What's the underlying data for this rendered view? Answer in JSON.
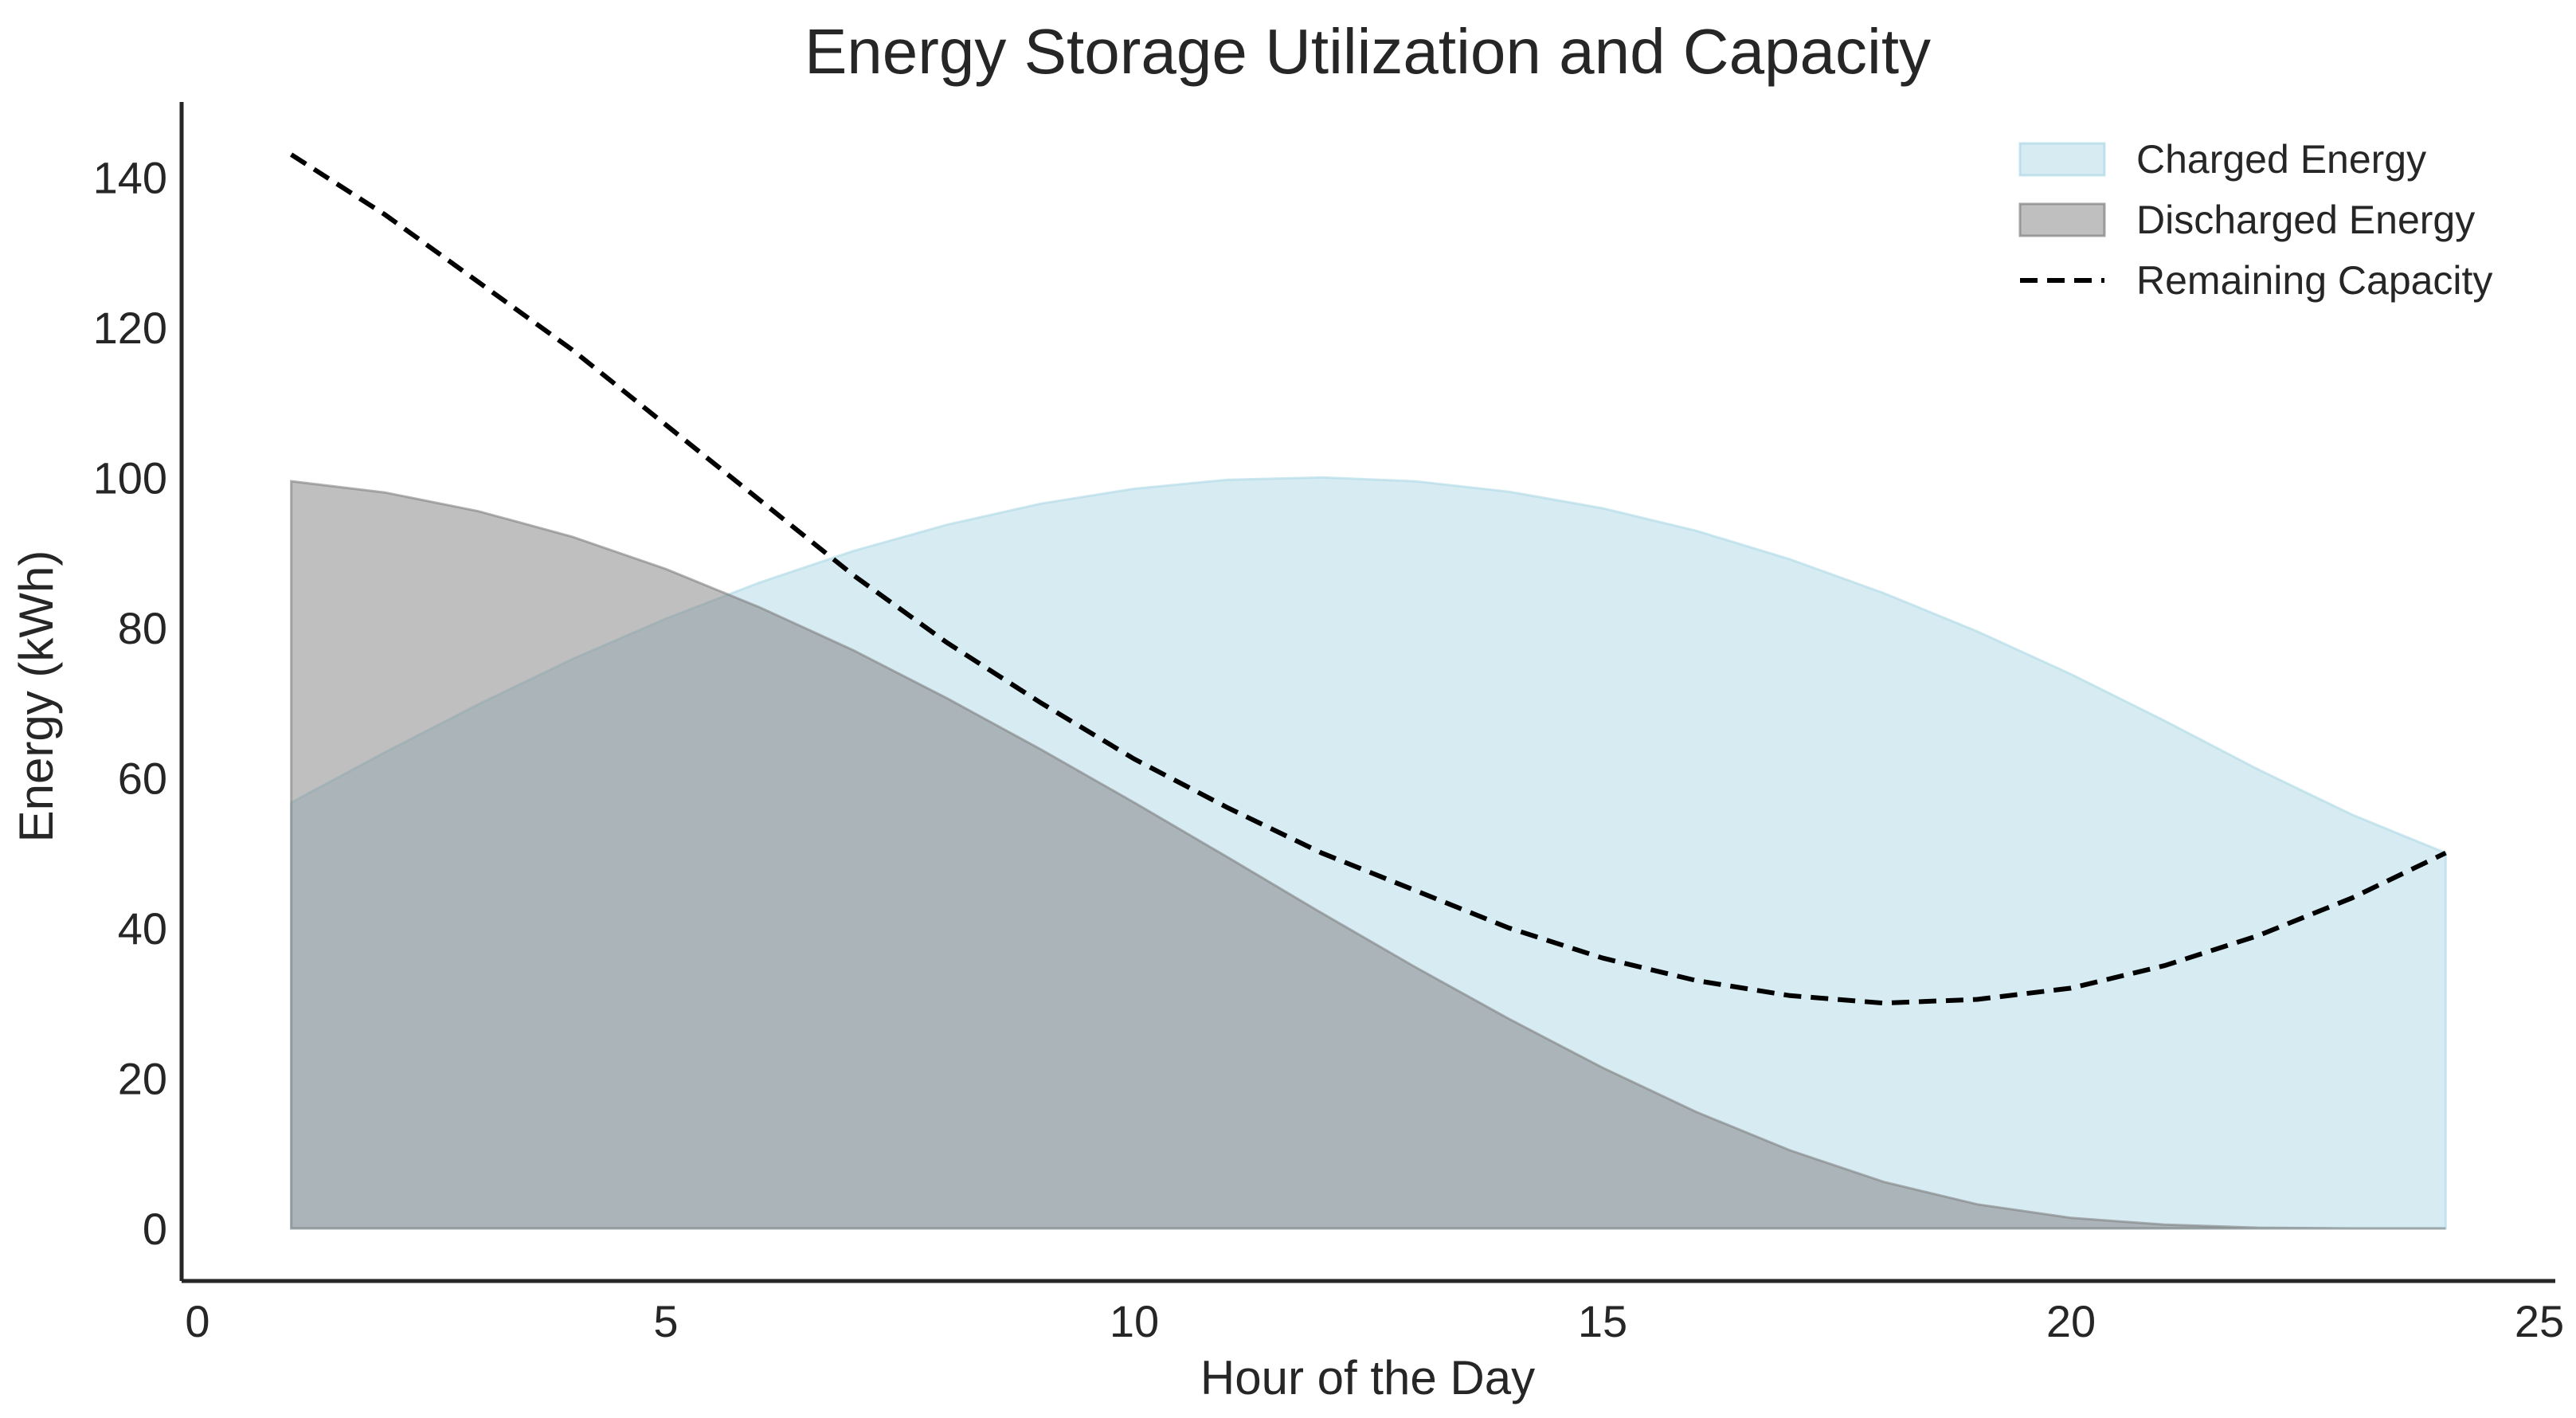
{
  "chart_data": {
    "type": "area",
    "title": "Energy Storage Utilization and Capacity",
    "xlabel": "Hour of the Day",
    "ylabel": "Energy (kWh)",
    "xlim": [
      0,
      25
    ],
    "ylim": [
      -7,
      150
    ],
    "xticks": [
      0,
      5,
      10,
      15,
      20,
      25
    ],
    "yticks": [
      0,
      20,
      40,
      60,
      80,
      100,
      120,
      140
    ],
    "grid": false,
    "legend_position": "top-right",
    "x": [
      1,
      2,
      3,
      4,
      5,
      6,
      7,
      8,
      9,
      10,
      11,
      12,
      13,
      14,
      15,
      16,
      17,
      18,
      19,
      20,
      21,
      22,
      23,
      24
    ],
    "series": [
      {
        "name": "Charged Energy",
        "kind": "area",
        "color": "#add8e6",
        "values": [
          56.7,
          63.4,
          69.8,
          75.8,
          81.2,
          86.0,
          90.2,
          93.7,
          96.5,
          98.5,
          99.7,
          100.0,
          99.5,
          98.1,
          95.9,
          92.9,
          89.1,
          84.6,
          79.5,
          73.8,
          67.6,
          61.1,
          55.1,
          50.0
        ]
      },
      {
        "name": "Discharged Energy",
        "kind": "area",
        "color": "#808080",
        "values": [
          99.5,
          98.0,
          95.5,
          92.1,
          87.8,
          82.7,
          77.0,
          70.6,
          63.8,
          56.7,
          49.4,
          42.0,
          34.8,
          27.9,
          21.4,
          15.5,
          10.4,
          6.2,
          3.2,
          1.4,
          0.5,
          0.1,
          0.0,
          0.0
        ]
      },
      {
        "name": "Remaining Capacity",
        "kind": "line",
        "style": "dashed",
        "color": "#000000",
        "values": [
          143.0,
          135.0,
          126.0,
          117.0,
          107.0,
          97.0,
          87.0,
          78.0,
          70.0,
          62.5,
          56.0,
          50.0,
          45.0,
          40.0,
          36.0,
          33.0,
          31.0,
          30.0,
          30.5,
          32.0,
          35.0,
          39.0,
          44.0,
          50.0
        ]
      }
    ]
  }
}
